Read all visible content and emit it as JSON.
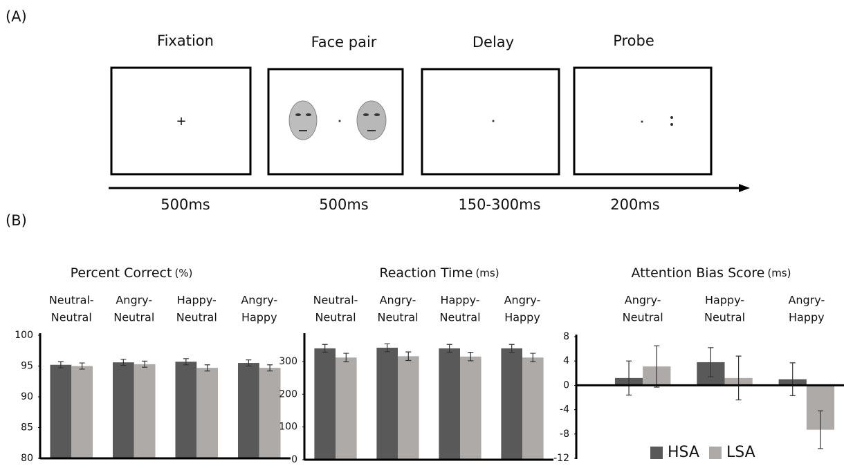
{
  "panel_a": {
    "label": "(A)",
    "frames": [
      {
        "title": "Fixation",
        "duration": "500ms"
      },
      {
        "title": "Face pair",
        "duration": "500ms"
      },
      {
        "title": "Delay",
        "duration": "150-300ms"
      },
      {
        "title": "Probe",
        "duration": "200ms"
      }
    ]
  },
  "panel_b": {
    "label": "(B)"
  },
  "chart_data": [
    {
      "type": "bar",
      "title": "Percent Correct",
      "title_unit": "(%)",
      "categories": [
        [
          "Neutral-",
          "Neutral"
        ],
        [
          "Angry-",
          "Neutral"
        ],
        [
          "Happy-",
          "Neutral"
        ],
        [
          "Angry-",
          "Happy"
        ]
      ],
      "series": [
        {
          "name": "HSA",
          "color": "#595959",
          "values": [
            95.2,
            95.6,
            95.7,
            95.5
          ],
          "errors": [
            0.5,
            0.5,
            0.5,
            0.5
          ]
        },
        {
          "name": "LSA",
          "color": "#adaaa8",
          "values": [
            95.0,
            95.3,
            94.7,
            94.7
          ],
          "errors": [
            0.5,
            0.5,
            0.5,
            0.5
          ]
        }
      ],
      "ylim": [
        80,
        100
      ],
      "yticks": [
        80,
        85,
        90,
        95,
        100
      ]
    },
    {
      "type": "bar",
      "title": "Reaction Time",
      "title_unit": "(ms)",
      "categories": [
        [
          "Neutral-",
          "Neutral"
        ],
        [
          "Angry-",
          "Neutral"
        ],
        [
          "Happy-",
          "Neutral"
        ],
        [
          "Angry-",
          "Happy"
        ]
      ],
      "series": [
        {
          "name": "HSA",
          "color": "#595959",
          "values": [
            340,
            342,
            340,
            340
          ],
          "errors": [
            12,
            12,
            12,
            12
          ]
        },
        {
          "name": "LSA",
          "color": "#adaaa8",
          "values": [
            312,
            316,
            315,
            312
          ],
          "errors": [
            13,
            13,
            13,
            13
          ]
        }
      ],
      "ylim": [
        0,
        380
      ],
      "yticks": [
        0,
        100,
        200,
        300
      ]
    },
    {
      "type": "bar",
      "title": "Attention Bias Score",
      "title_unit": "(ms)",
      "categories": [
        [
          "Angry-",
          "Neutral"
        ],
        [
          "Happy-",
          "Neutral"
        ],
        [
          "Angry-",
          "Happy"
        ]
      ],
      "series": [
        {
          "name": "HSA",
          "color": "#595959",
          "values": [
            1.2,
            3.8,
            1.0
          ],
          "errors": [
            2.8,
            2.4,
            2.7
          ]
        },
        {
          "name": "LSA",
          "color": "#adaaa8",
          "values": [
            3.1,
            1.2,
            -7.3
          ],
          "errors": [
            3.4,
            3.6,
            3.1
          ]
        }
      ],
      "ylim": [
        -12,
        8
      ],
      "yticks": [
        8,
        4,
        0,
        -4,
        -8,
        -12
      ],
      "legend": "lower right"
    }
  ]
}
